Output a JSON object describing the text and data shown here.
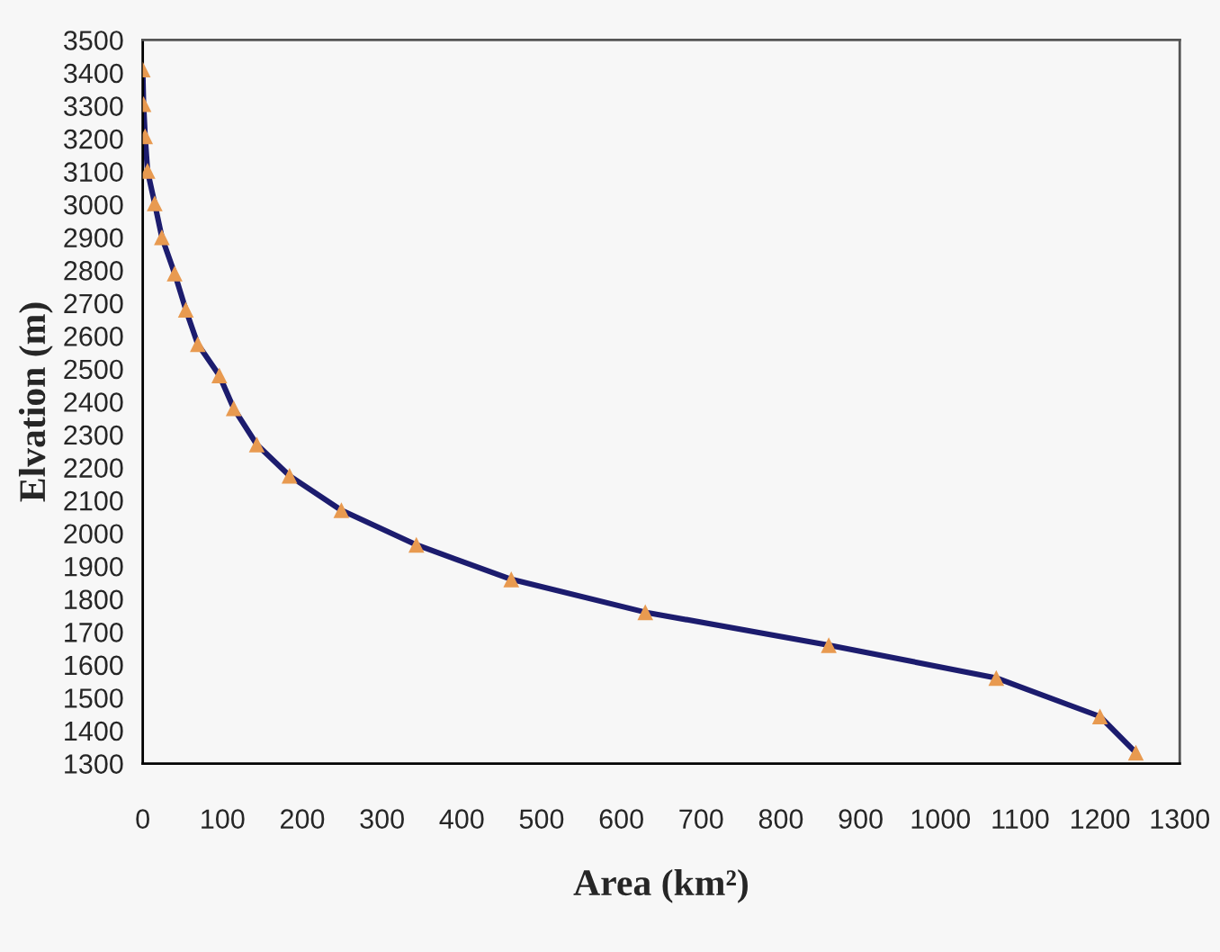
{
  "chart_data": {
    "type": "line",
    "xlabel": "Area (km²)",
    "ylabel": "Elvation (m)",
    "x": [
      0,
      1,
      3,
      6,
      15,
      24,
      40,
      54,
      69,
      96,
      114,
      143,
      184,
      249,
      343,
      462,
      630,
      860,
      1070,
      1200,
      1245
    ],
    "series": [
      {
        "marker": "none",
        "color": "#1c1c6e",
        "values": [
          3410,
          3305,
          3207,
          3102,
          3003,
          2900,
          2790,
          2680,
          2575,
          2480,
          2380,
          2270,
          2175,
          2070,
          1965,
          1860,
          1760,
          1660,
          1560,
          1443,
          1333
        ]
      },
      {
        "type": "scatter",
        "marker": "triangle",
        "color": "#e89a50",
        "values": [
          3410,
          3305,
          3207,
          3102,
          3003,
          2900,
          2790,
          2680,
          2575,
          2480,
          2380,
          2270,
          2175,
          2070,
          1965,
          1860,
          1760,
          1660,
          1560,
          1443,
          1333
        ]
      }
    ],
    "xlim": [
      0,
      1300
    ],
    "xticks": [
      0,
      100,
      200,
      300,
      400,
      500,
      600,
      700,
      800,
      900,
      1000,
      1100,
      1200,
      1300
    ],
    "ylim": [
      1300,
      3500
    ],
    "yticks": [
      1300,
      1400,
      1500,
      1600,
      1700,
      1800,
      1900,
      2000,
      2100,
      2200,
      2300,
      2400,
      2500,
      2600,
      2700,
      2800,
      2900,
      3000,
      3100,
      3200,
      3300,
      3400,
      3500
    ],
    "grid": false,
    "legend": false
  }
}
